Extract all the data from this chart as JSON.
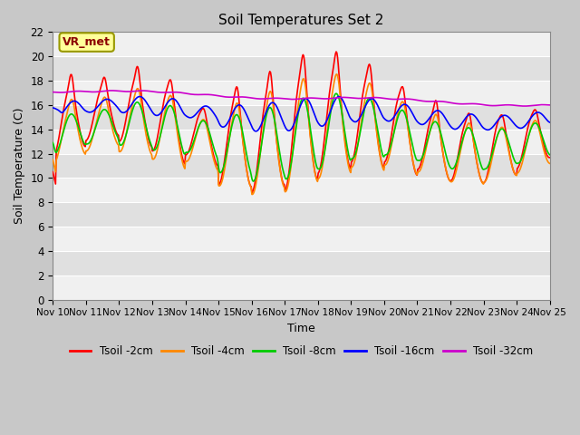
{
  "title": "Soil Temperatures Set 2",
  "xlabel": "Time",
  "ylabel": "Soil Temperature (C)",
  "ylim": [
    0,
    22
  ],
  "yticks": [
    0,
    2,
    4,
    6,
    8,
    10,
    12,
    14,
    16,
    18,
    20,
    22
  ],
  "x_labels": [
    "Nov 10",
    "Nov 11",
    "Nov 12",
    "Nov 13",
    "Nov 14",
    "Nov 15",
    "Nov 16",
    "Nov 17",
    "Nov 18",
    "Nov 19",
    "Nov 20",
    "Nov 21",
    "Nov 22",
    "Nov 23",
    "Nov 24",
    "Nov 25"
  ],
  "legend_labels": [
    "Tsoil -2cm",
    "Tsoil -4cm",
    "Tsoil -8cm",
    "Tsoil -16cm",
    "Tsoil -32cm"
  ],
  "line_colors": [
    "#ff0000",
    "#ff8800",
    "#00cc00",
    "#0000ff",
    "#cc00cc"
  ],
  "annotation_text": "VR_met",
  "annotation_box_color": "#ffff99",
  "annotation_border_color": "#999900",
  "figsize": [
    6.4,
    4.8
  ],
  "dpi": 100,
  "days": 15,
  "pts_per_day": 48
}
